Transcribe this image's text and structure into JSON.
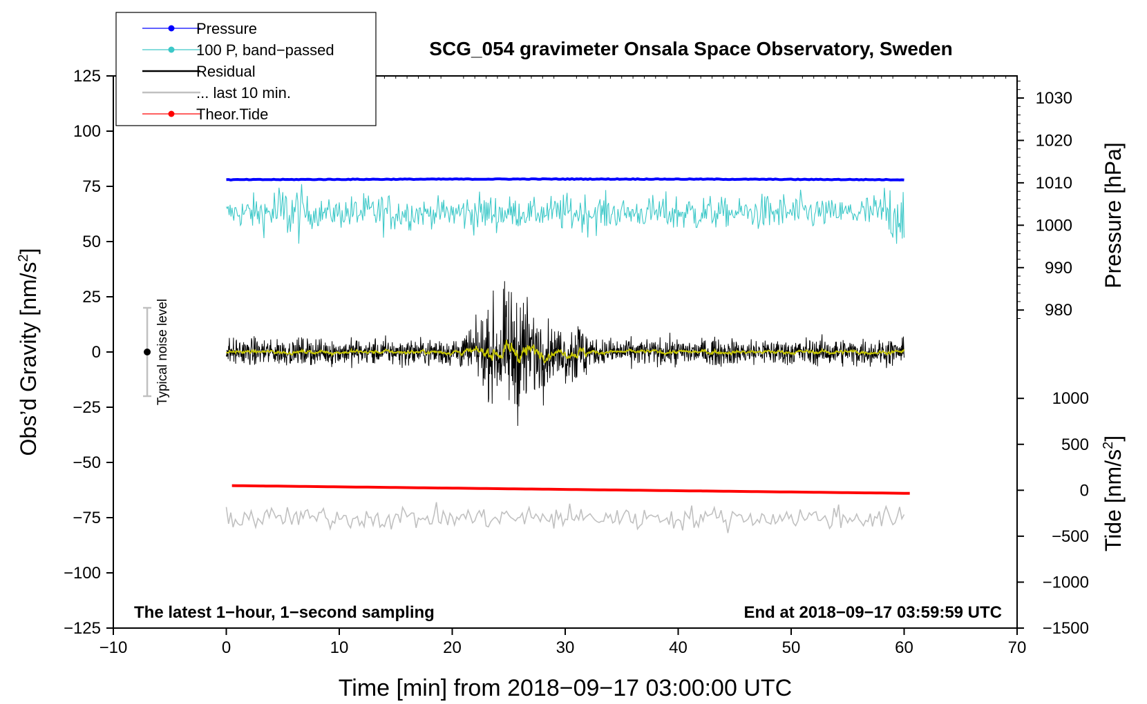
{
  "chart_data": {
    "type": "line",
    "title": "SCG_054 gravimeter Onsala Space Observatory, Sweden",
    "xlabel": "Time [min] from 2018−09−17 03:00:00 UTC",
    "ylabel_left_main": "Obs’d Gravity [nm/s",
    "ylabel_left_sup": "2",
    "ylabel_left_end": "]",
    "ylabel_right_top": "Pressure [hPa]",
    "ylabel_right_bottom_main": "Tide [nm/s",
    "ylabel_right_bottom_sup": "2",
    "ylabel_right_bottom_end": "]",
    "xlim": [
      -10,
      70
    ],
    "ylim_left": [
      -125,
      125
    ],
    "x_ticks": [
      -10,
      0,
      10,
      20,
      30,
      40,
      50,
      60,
      70
    ],
    "x_tick_labels": [
      "−10",
      "0",
      "10",
      "20",
      "30",
      "40",
      "50",
      "60",
      "70"
    ],
    "y_left_ticks": [
      125,
      100,
      75,
      50,
      25,
      0,
      -25,
      -50,
      -75,
      -100,
      -125
    ],
    "y_left_tick_labels": [
      "125",
      "100",
      "75",
      "50",
      "25",
      "0",
      "−25",
      "−50",
      "−75",
      "−100",
      "−125"
    ],
    "pressure_axis": {
      "ticks": [
        1030,
        1020,
        1010,
        1000,
        990,
        980
      ],
      "tick_labels": [
        "1030",
        "1020",
        "1010",
        "1000",
        "990",
        "980"
      ],
      "left_equivalent": [
        [
          1030,
          115
        ],
        [
          980,
          19
        ]
      ]
    },
    "tide_axis": {
      "ticks": [
        1000,
        500,
        0,
        -500,
        -1000,
        -1500
      ],
      "tick_labels": [
        "1000",
        "500",
        "0",
        "−500",
        "−1000",
        "−1500"
      ],
      "left_equivalent": [
        [
          1000,
          -21
        ],
        [
          -1500,
          -125
        ]
      ]
    },
    "series": [
      {
        "name": "Pressure",
        "color": "#0000ff",
        "style": "line-dot",
        "x_range": [
          0,
          60
        ],
        "y_start": 78,
        "y_end": 78
      },
      {
        "name": "100 P, band−passed",
        "color": "#3cc8c8",
        "style": "line-dot",
        "x_range": [
          0,
          60
        ],
        "center": 63,
        "amplitude": 9,
        "min": 41,
        "max": 76
      },
      {
        "name": "Residual",
        "color": "#000000",
        "style": "line",
        "x_range": [
          0,
          60
        ],
        "center": 0,
        "amplitude": 6,
        "min": -36,
        "max": 35,
        "burst_window": [
          18,
          32
        ]
      },
      {
        "name": "... last 10 min.",
        "color": "#c0c0c0",
        "style": "line",
        "x_range": [
          0,
          60
        ],
        "center": -75,
        "amplitude": 3,
        "min": -88,
        "max": -68
      },
      {
        "name": "Theor.Tide",
        "color": "#ff0000",
        "style": "line-dot",
        "x_range": [
          0.5,
          60.5
        ],
        "y_start": -60.5,
        "y_end": -64
      }
    ],
    "smoothed_residual": {
      "color": "#c8c800",
      "amplitude": 2
    },
    "noise_marker": {
      "label": "Typical noise level",
      "x": -7,
      "center": 0,
      "range": [
        -20,
        20
      ]
    },
    "annotation_left": "The latest 1−hour, 1−second sampling",
    "annotation_right": "End at 2018−09−17 03:59:59 UTC",
    "legend_position": "top-left"
  }
}
